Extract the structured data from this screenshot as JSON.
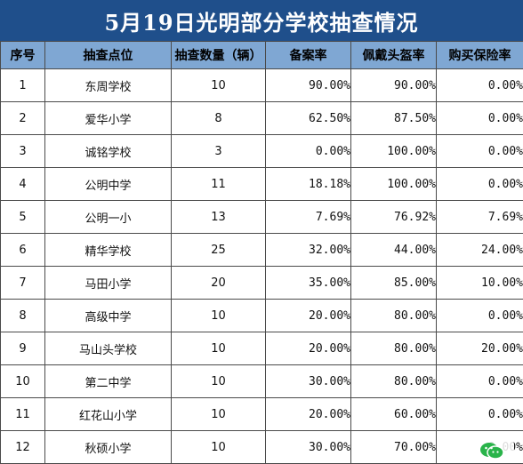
{
  "title": "5月19日光明部分学校抽查情况",
  "headers": [
    "序号",
    "抽查点位",
    "抽查数量（辆）",
    "备案率",
    "佩戴头盔率",
    "购买保险率"
  ],
  "rows": [
    {
      "idx": "1",
      "site": "东周学校",
      "count": "10",
      "filing": "90.00%",
      "helmet": "90.00%",
      "insurance": "0.00%"
    },
    {
      "idx": "2",
      "site": "爱华小学",
      "count": "8",
      "filing": "62.50%",
      "helmet": "87.50%",
      "insurance": "0.00%"
    },
    {
      "idx": "3",
      "site": "诚铭学校",
      "count": "3",
      "filing": "0.00%",
      "helmet": "100.00%",
      "insurance": "0.00%"
    },
    {
      "idx": "4",
      "site": "公明中学",
      "count": "11",
      "filing": "18.18%",
      "helmet": "100.00%",
      "insurance": "0.00%"
    },
    {
      "idx": "5",
      "site": "公明一小",
      "count": "13",
      "filing": "7.69%",
      "helmet": "76.92%",
      "insurance": "7.69%"
    },
    {
      "idx": "6",
      "site": "精华学校",
      "count": "25",
      "filing": "32.00%",
      "helmet": "44.00%",
      "insurance": "24.00%"
    },
    {
      "idx": "7",
      "site": "马田小学",
      "count": "20",
      "filing": "35.00%",
      "helmet": "85.00%",
      "insurance": "10.00%"
    },
    {
      "idx": "8",
      "site": "高级中学",
      "count": "10",
      "filing": "20.00%",
      "helmet": "80.00%",
      "insurance": "0.00%"
    },
    {
      "idx": "9",
      "site": "马山头学校",
      "count": "10",
      "filing": "20.00%",
      "helmet": "80.00%",
      "insurance": "20.00%"
    },
    {
      "idx": "10",
      "site": "第二中学",
      "count": "10",
      "filing": "30.00%",
      "helmet": "80.00%",
      "insurance": "0.00%"
    },
    {
      "idx": "11",
      "site": "红花山小学",
      "count": "10",
      "filing": "20.00%",
      "helmet": "60.00%",
      "insurance": "0.00%"
    },
    {
      "idx": "12",
      "site": "秋硕小学",
      "count": "10",
      "filing": "30.00%",
      "helmet": "70.00%",
      "insurance": "0.00%"
    }
  ],
  "colors": {
    "title_bg": "#1f4f8b",
    "header_bg": "#7fa7d3",
    "watermark_icon": "#29b34a"
  },
  "icons": {
    "watermark": "wechat-icon"
  }
}
